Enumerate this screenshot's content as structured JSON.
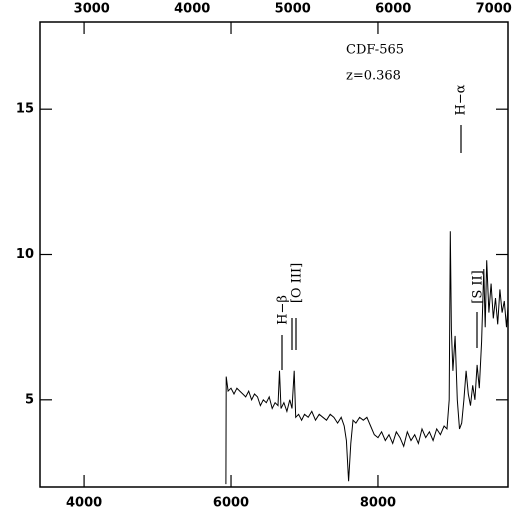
{
  "chart_data": {
    "type": "line",
    "title": "CDF-565",
    "subtitle": "z=0.368",
    "annotations": [
      "H−β",
      "[O III]",
      "H−α",
      "[S II]"
    ],
    "x": [
      5930,
      5935,
      5960,
      6000,
      6040,
      6080,
      6120,
      6160,
      6200,
      6240,
      6280,
      6320,
      6360,
      6400,
      6440,
      6480,
      6520,
      6560,
      6600,
      6640,
      6660,
      6680,
      6720,
      6760,
      6800,
      6830,
      6860,
      6880,
      6920,
      6960,
      7000,
      7050,
      7100,
      7150,
      7200,
      7250,
      7300,
      7350,
      7400,
      7450,
      7500,
      7540,
      7570,
      7600,
      7630,
      7660,
      7700,
      7750,
      7800,
      7850,
      7900,
      7950,
      8000,
      8050,
      8100,
      8150,
      8200,
      8250,
      8300,
      8350,
      8400,
      8450,
      8500,
      8550,
      8600,
      8650,
      8700,
      8750,
      8800,
      8850,
      8900,
      8940,
      8970,
      8985,
      9000,
      9020,
      9050,
      9080,
      9110,
      9140,
      9170,
      9200,
      9230,
      9260,
      9290,
      9320,
      9350,
      9380,
      9410,
      9440,
      9460,
      9480,
      9510,
      9540,
      9570,
      9600,
      9630,
      9660,
      9690,
      9720,
      9750,
      9770
    ],
    "values": [
      2.1,
      5.8,
      5.3,
      5.4,
      5.2,
      5.4,
      5.3,
      5.2,
      5.1,
      5.3,
      5.0,
      5.2,
      5.1,
      4.8,
      5.0,
      4.9,
      5.1,
      4.7,
      4.9,
      4.8,
      6.0,
      4.7,
      4.9,
      4.6,
      5.0,
      4.7,
      6.0,
      4.4,
      4.5,
      4.3,
      4.5,
      4.4,
      4.6,
      4.3,
      4.5,
      4.4,
      4.3,
      4.5,
      4.4,
      4.2,
      4.4,
      4.1,
      3.6,
      2.2,
      3.5,
      4.3,
      4.2,
      4.4,
      4.3,
      4.4,
      4.1,
      3.8,
      3.7,
      3.9,
      3.6,
      3.8,
      3.5,
      3.9,
      3.7,
      3.4,
      3.9,
      3.6,
      3.8,
      3.5,
      4.0,
      3.7,
      3.9,
      3.6,
      4.0,
      3.8,
      4.1,
      4.0,
      5.0,
      10.8,
      7.4,
      6.0,
      7.2,
      5.0,
      4.0,
      4.2,
      5.0,
      6.0,
      5.2,
      4.8,
      5.5,
      5.0,
      6.2,
      5.4,
      7.0,
      9.5,
      7.5,
      9.8,
      8.0,
      9.0,
      7.8,
      8.5,
      7.6,
      8.8,
      8.0,
      8.4,
      7.5,
      8.2
    ],
    "color": "#000000",
    "xlim": [
      3400,
      9770
    ],
    "xticks": [
      4000,
      6000,
      8000
    ],
    "x2lim": [
      2485,
      7142
    ],
    "x2ticks": [
      3000,
      4000,
      5000,
      6000,
      7000
    ],
    "ylim": [
      2,
      18
    ],
    "yticks": [
      5,
      10,
      15
    ]
  }
}
